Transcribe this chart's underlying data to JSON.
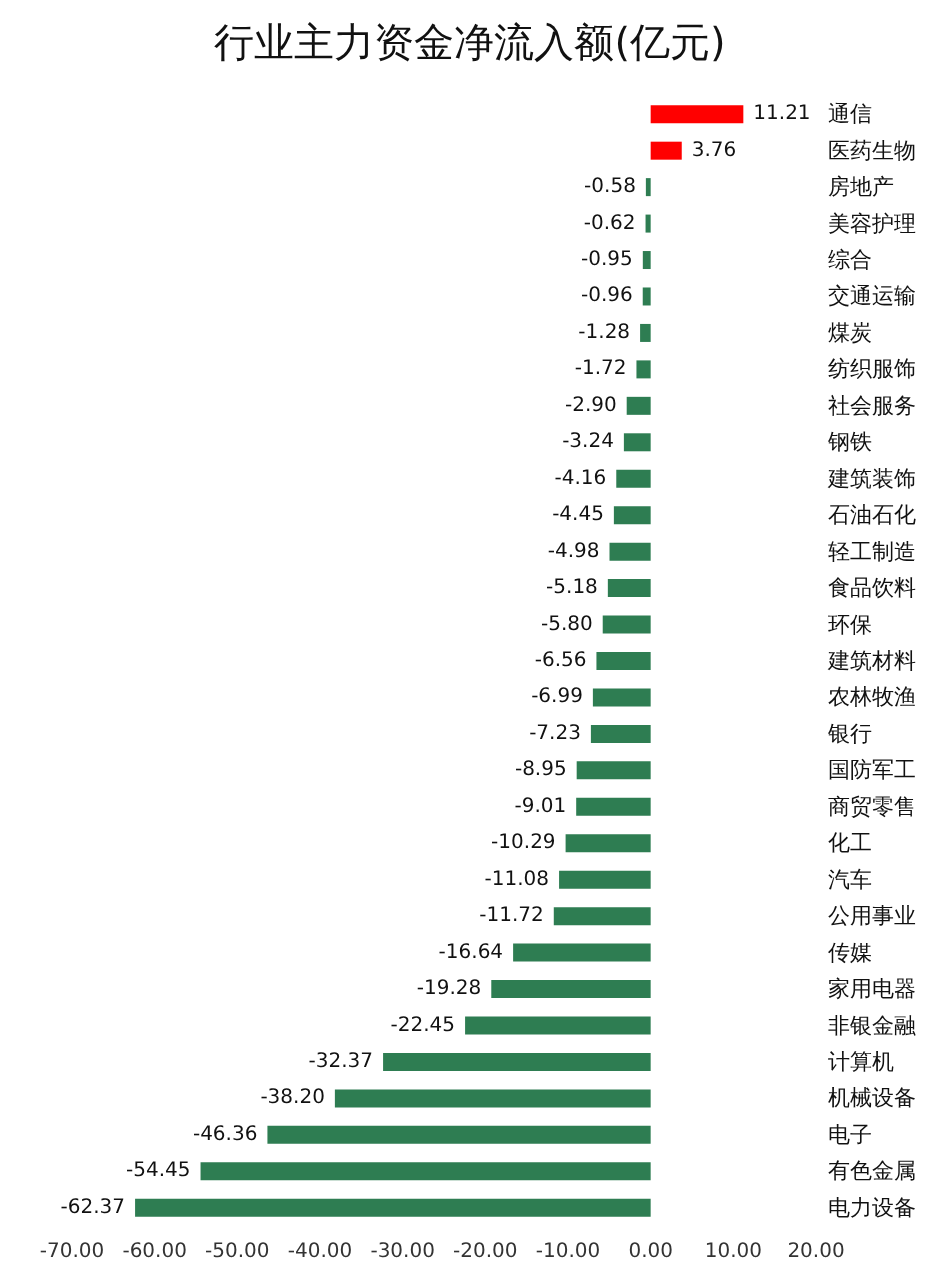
{
  "chart_data": {
    "type": "bar",
    "orientation": "horizontal",
    "title": "行业主力资金净流入额(亿元)",
    "categories": [
      "通信",
      "医药生物",
      "房地产",
      "美容护理",
      "综合",
      "交通运输",
      "煤炭",
      "纺织服饰",
      "社会服务",
      "钢铁",
      "建筑装饰",
      "石油石化",
      "轻工制造",
      "食品饮料",
      "环保",
      "建筑材料",
      "农林牧渔",
      "银行",
      "国防军工",
      "商贸零售",
      "化工",
      "汽车",
      "公用事业",
      "传媒",
      "家用电器",
      "非银金融",
      "计算机",
      "机械设备",
      "电子",
      "有色金属",
      "电力设备"
    ],
    "values": [
      11.21,
      3.76,
      -0.58,
      -0.62,
      -0.95,
      -0.96,
      -1.28,
      -1.72,
      -2.9,
      -3.24,
      -4.16,
      -4.45,
      -4.98,
      -5.18,
      -5.8,
      -6.56,
      -6.99,
      -7.23,
      -8.95,
      -9.01,
      -10.29,
      -11.08,
      -11.72,
      -16.64,
      -19.28,
      -22.45,
      -32.37,
      -38.2,
      -46.36,
      -54.45,
      -62.37
    ],
    "value_labels": [
      "11.21",
      "3.76",
      "-0.58",
      "-0.62",
      "-0.95",
      "-0.96",
      "-1.28",
      "-1.72",
      "-2.90",
      "-3.24",
      "-4.16",
      "-4.45",
      "-4.98",
      "-5.18",
      "-5.80",
      "-6.56",
      "-6.99",
      "-7.23",
      "-8.95",
      "-9.01",
      "-10.29",
      "-11.08",
      "-11.72",
      "-16.64",
      "-19.28",
      "-22.45",
      "-32.37",
      "-38.20",
      "-46.36",
      "-54.45",
      "-62.37"
    ],
    "colors": [
      "#ff0000",
      "#ff0000",
      "#2e7d52",
      "#2e7d52",
      "#2e7d52",
      "#2e7d52",
      "#2e7d52",
      "#2e7d52",
      "#2e7d52",
      "#2e7d52",
      "#2e7d52",
      "#2e7d52",
      "#2e7d52",
      "#2e7d52",
      "#2e7d52",
      "#2e7d52",
      "#2e7d52",
      "#2e7d52",
      "#2e7d52",
      "#2e7d52",
      "#2e7d52",
      "#2e7d52",
      "#2e7d52",
      "#2e7d52",
      "#2e7d52",
      "#2e7d52",
      "#2e7d52",
      "#2e7d52",
      "#2e7d52",
      "#2e7d52",
      "#2e7d52"
    ],
    "xlim": [
      -70,
      20
    ],
    "xticks": [
      {
        "value": -70,
        "label": "-70.00"
      },
      {
        "value": -60,
        "label": "-60.00"
      },
      {
        "value": -50,
        "label": "-50.00"
      },
      {
        "value": -40,
        "label": "-40.00"
      },
      {
        "value": -30,
        "label": "-30.00"
      },
      {
        "value": -20,
        "label": "-20.00"
      },
      {
        "value": -10,
        "label": "-10.00"
      },
      {
        "value": 0,
        "label": "0.00"
      },
      {
        "value": 10,
        "label": "10.00"
      },
      {
        "value": 20,
        "label": "20.00"
      }
    ],
    "grid": false
  }
}
